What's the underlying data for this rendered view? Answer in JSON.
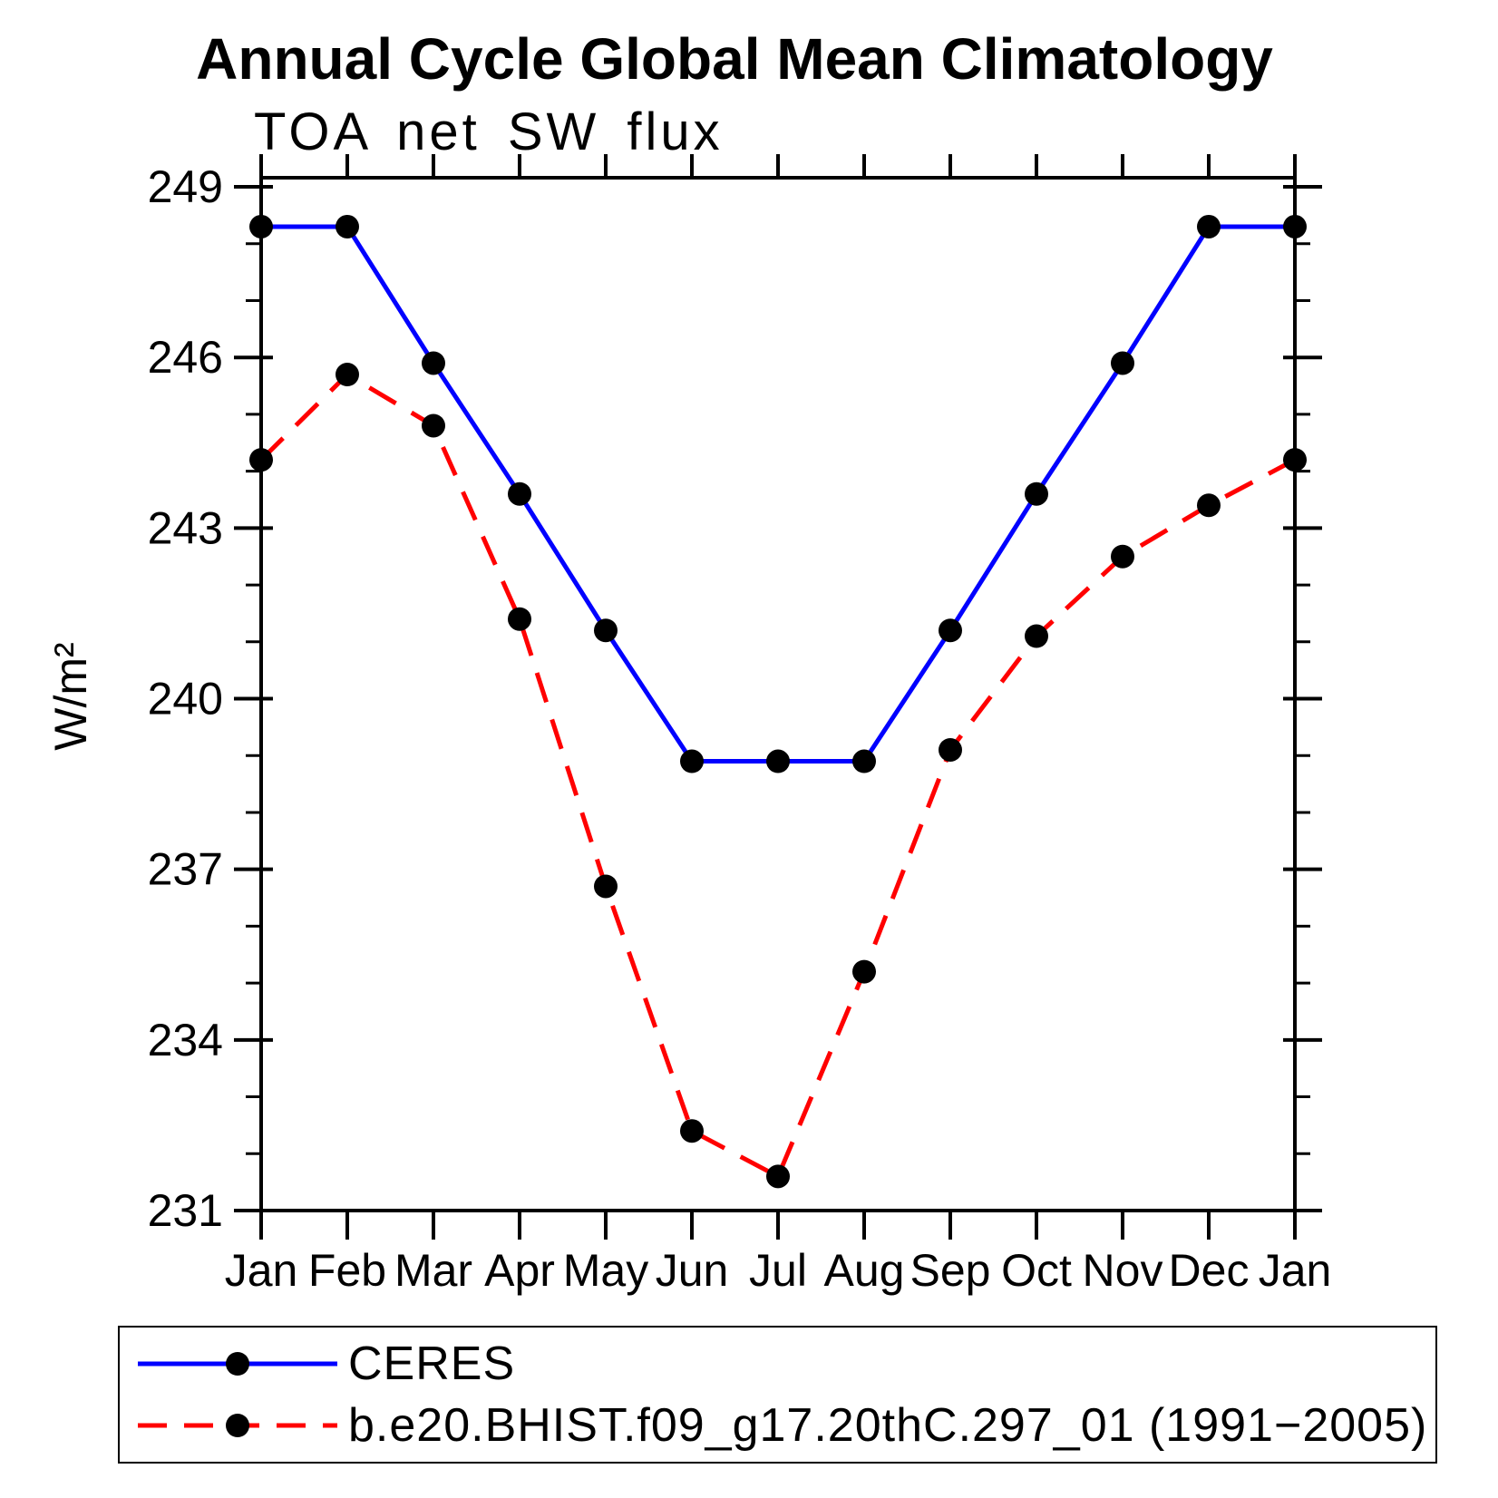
{
  "page": {
    "background": "#ffffff",
    "axis_color": "#000000"
  },
  "chart_data": {
    "type": "line",
    "title": "Annual Cycle Global Mean Climatology",
    "subtitle": "TOA net SW flux",
    "ylabel": "W/m²",
    "xlabel": "",
    "x_categories": [
      "Jan",
      "Feb",
      "Mar",
      "Apr",
      "May",
      "Jun",
      "Jul",
      "Aug",
      "Sep",
      "Oct",
      "Nov",
      "Dec",
      "Jan"
    ],
    "ylim": [
      231,
      249.16
    ],
    "yticks_major": [
      231,
      234,
      237,
      240,
      243,
      246,
      249
    ],
    "ytick_minor_interval": 1,
    "grid": false,
    "legend_position": "bottom-left-box",
    "series": [
      {
        "name": "CERES",
        "line_color": "#0000ff",
        "line_style": "solid",
        "marker": "filled-circle",
        "marker_color": "#000000",
        "values": [
          248.3,
          248.3,
          245.9,
          243.6,
          241.2,
          238.9,
          238.9,
          238.9,
          241.2,
          243.6,
          245.9,
          248.3,
          248.3
        ]
      },
      {
        "name": "b.e20.BHIST.f09_g17.20thC.297_01 (1991−2005)",
        "line_color": "#ff0000",
        "line_style": "dashed",
        "marker": "filled-circle",
        "marker_color": "#000000",
        "values": [
          244.2,
          245.7,
          244.8,
          241.4,
          236.7,
          232.4,
          231.6,
          235.2,
          239.1,
          241.1,
          242.5,
          243.4,
          244.2
        ]
      }
    ]
  }
}
